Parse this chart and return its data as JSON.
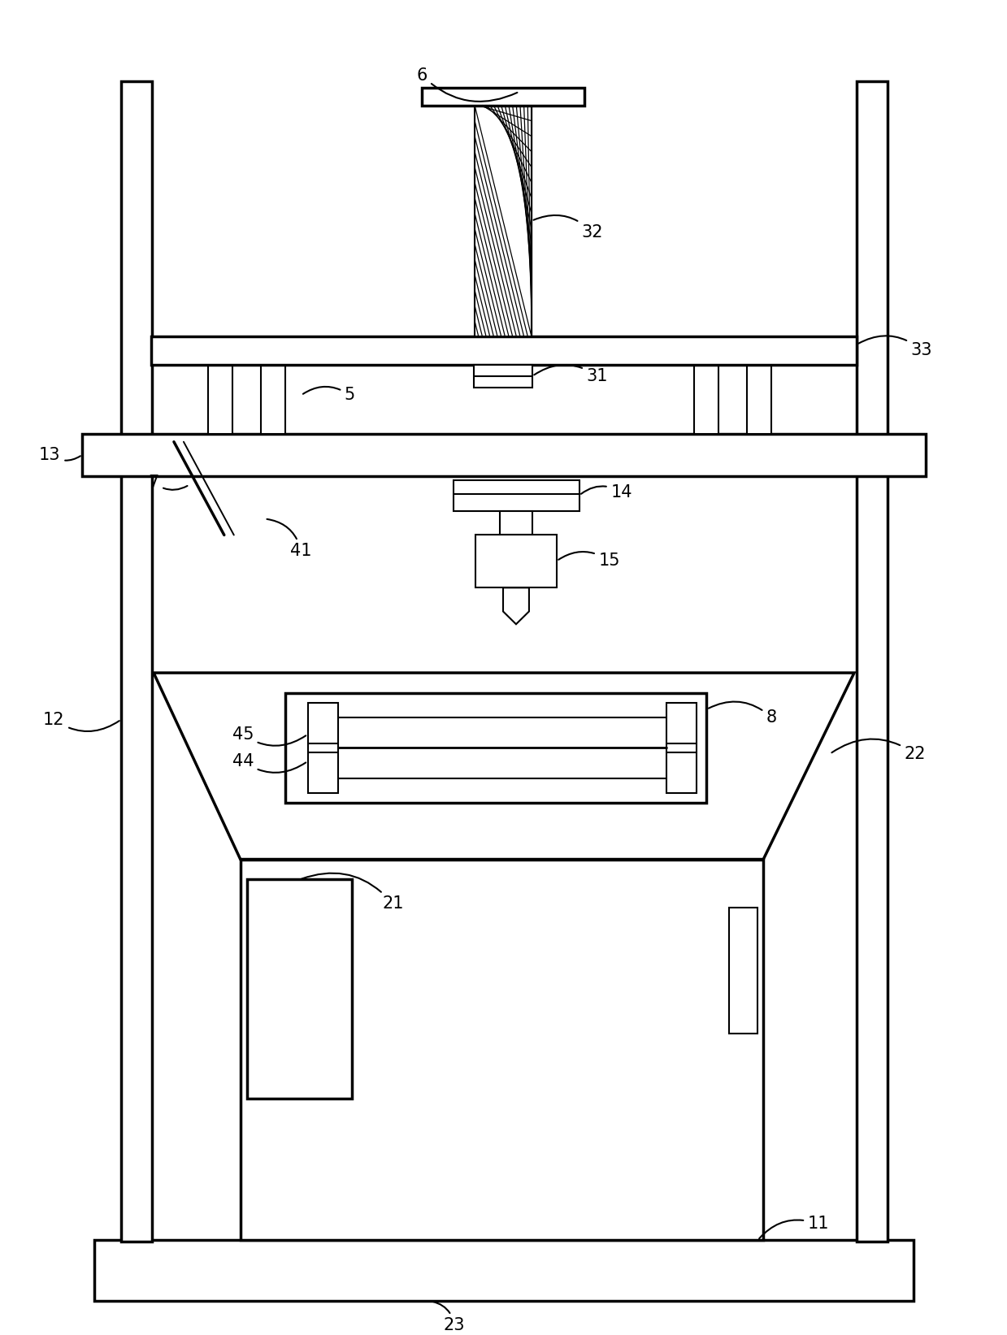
{
  "bg_color": "#ffffff",
  "line_color": "#000000",
  "lw": 2.5,
  "lw_thin": 1.5,
  "lw_med": 2.0,
  "fig_width": 12.39,
  "fig_height": 16.43,
  "font_size": 15
}
